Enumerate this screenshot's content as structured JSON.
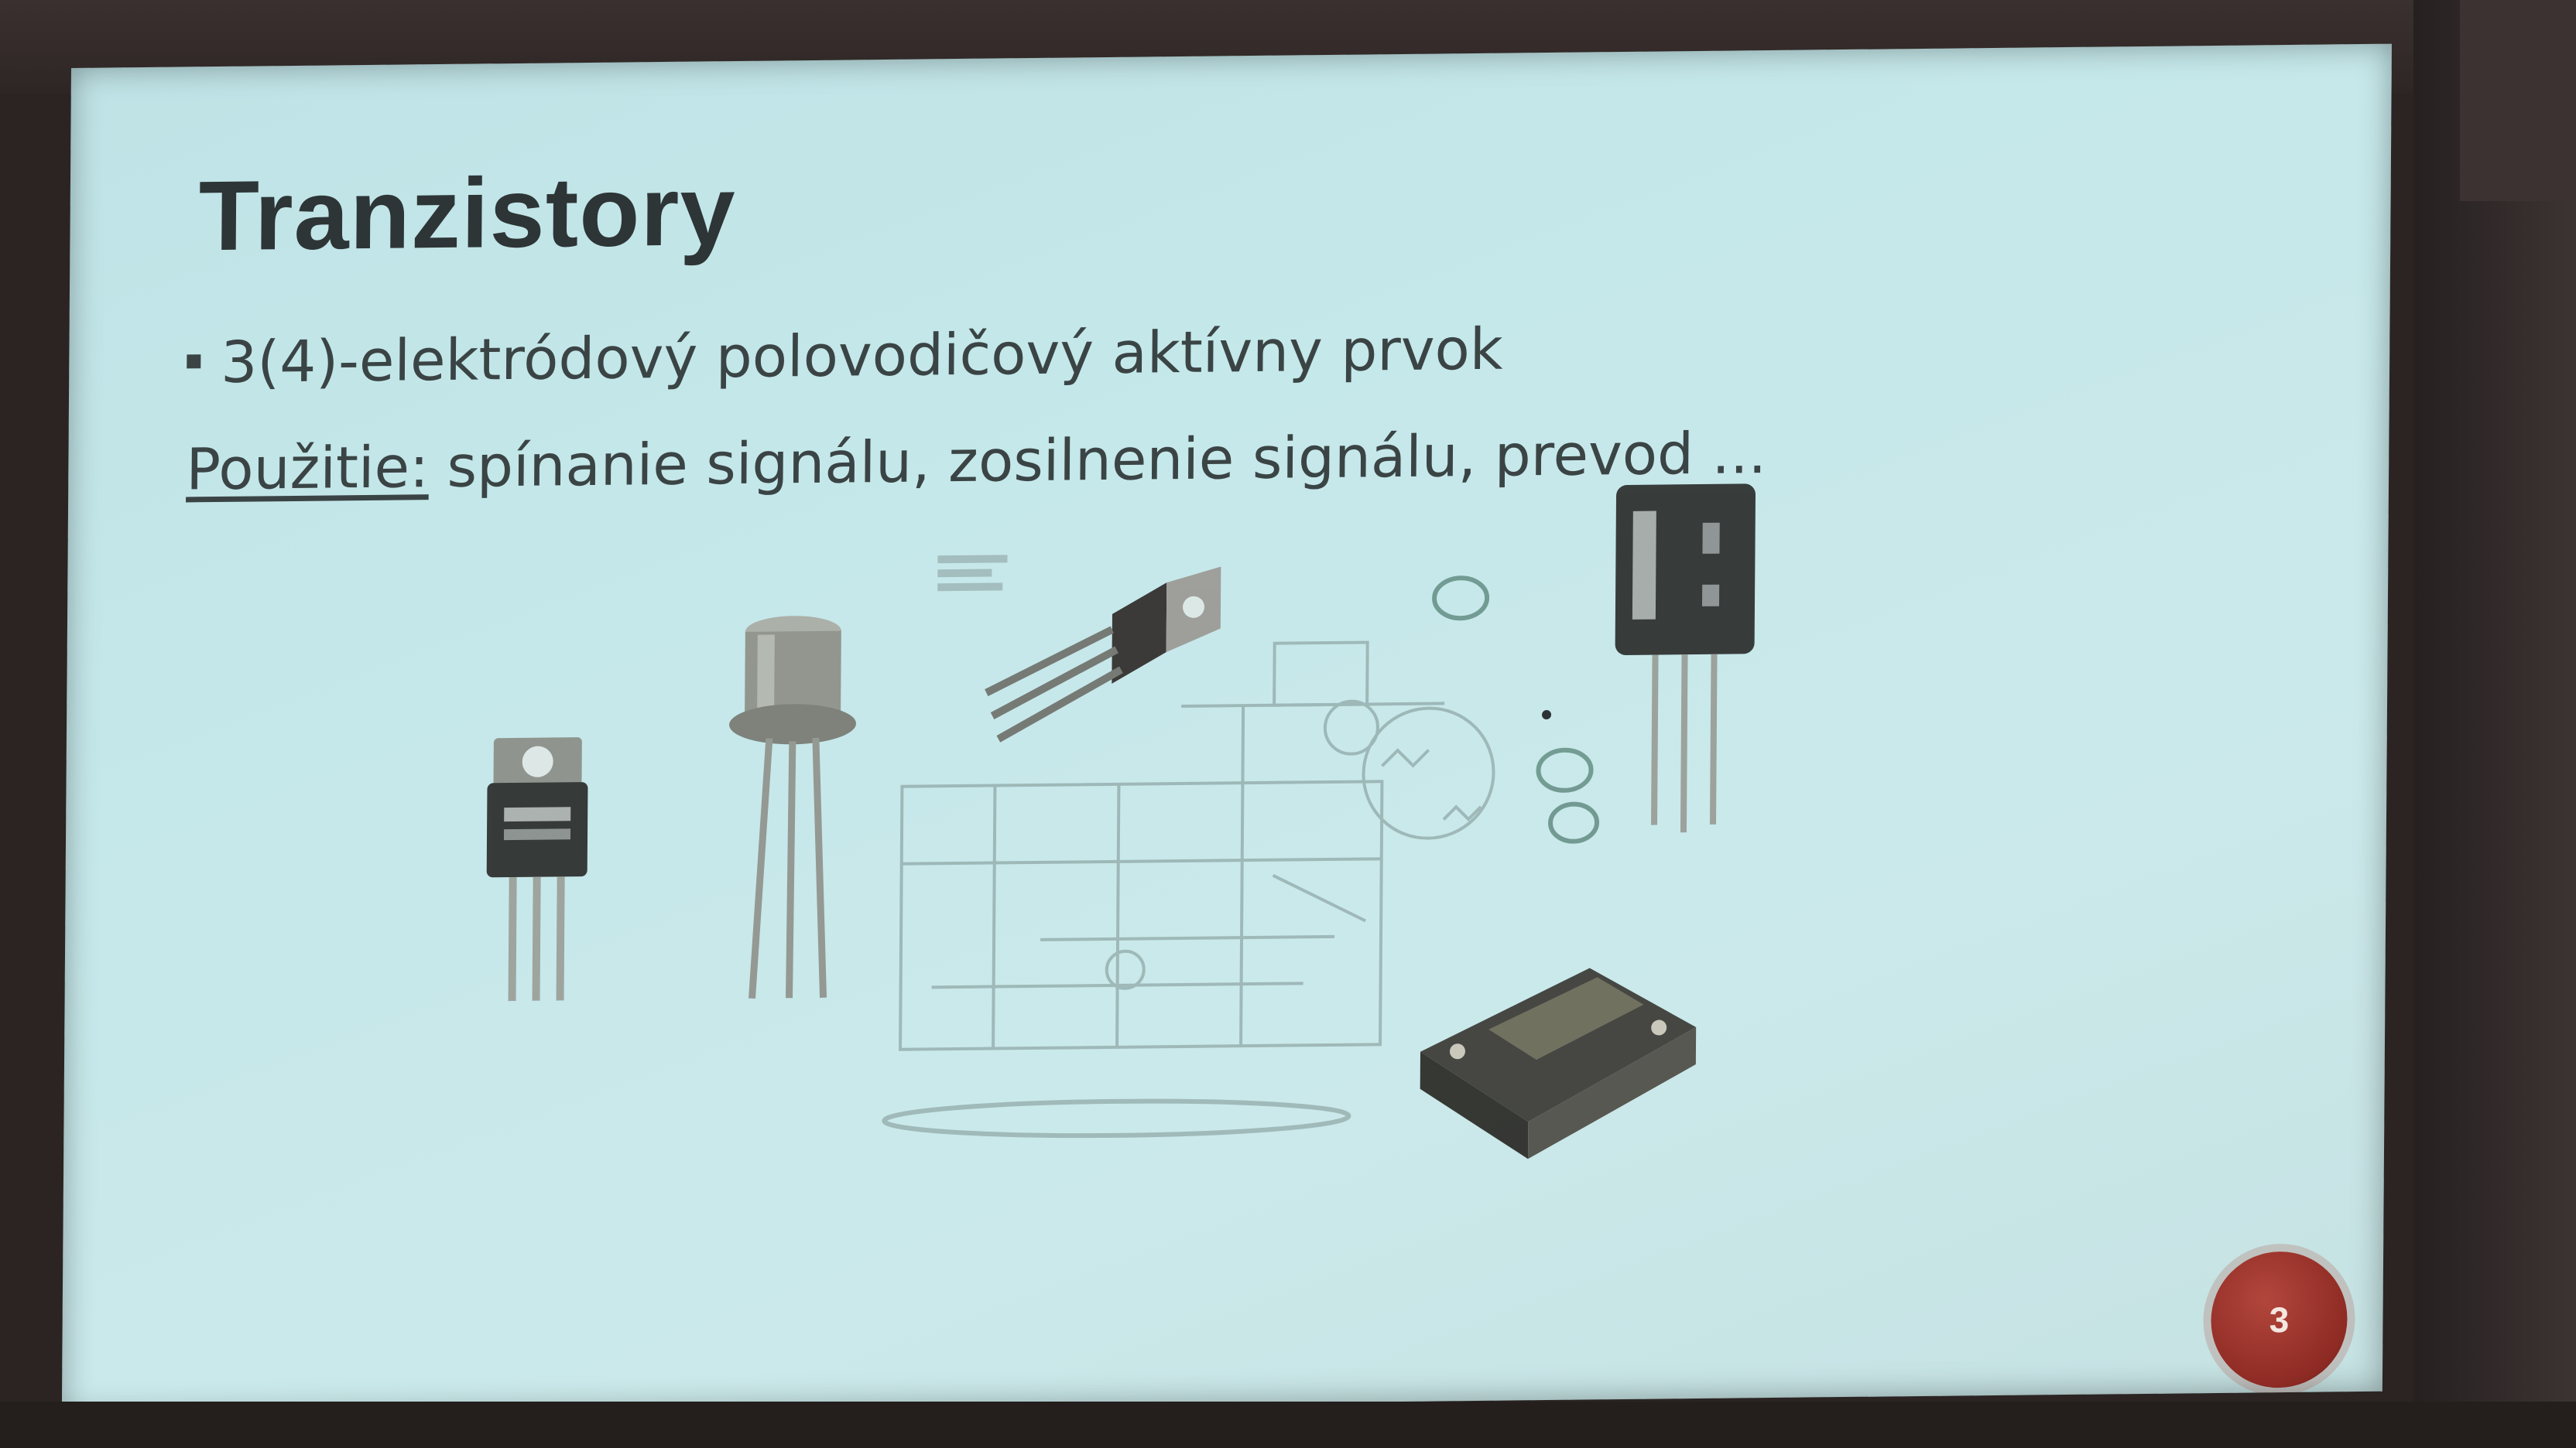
{
  "slide": {
    "title": "Tranzistory",
    "bullet": "3(4)-elektródový polovodičový aktívny prvok",
    "usage_label": "Použitie:",
    "usage_text": " spínanie signálu, zosilnenie signálu, prevod ...",
    "page_number": "3",
    "accent_color": "#8e2b24",
    "background_color": "#c5e8ea"
  }
}
